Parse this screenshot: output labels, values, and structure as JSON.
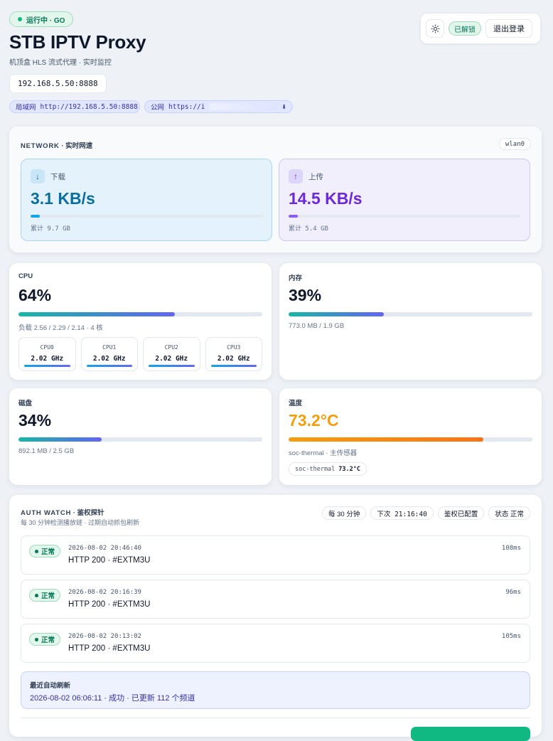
{
  "header": {
    "status": "运行中 · GO",
    "title": "STB IPTV Proxy",
    "subtitle": "机顶盒 HLS 流式代理 · 实时监控",
    "address": "192.168.5.50:8888",
    "lan_tag": "局域网",
    "lan_url": "http://192.168.5.50:8888",
    "wan_tag": "公网",
    "wan_url": "https://i",
    "wan_icon": "⬇"
  },
  "actions": {
    "theme_icon": "sun-icon",
    "unlocked": "已解锁",
    "logout": "退出登录"
  },
  "network": {
    "title": "NETWORK",
    "subtitle": " · 实时网速",
    "interface": "wlan0",
    "download": {
      "arrow": "↓",
      "label": "下载",
      "speed": "3.1 KB/s",
      "total": "累计 9.7 GB",
      "level": 0.04
    },
    "upload": {
      "arrow": "↑",
      "label": "上传",
      "speed": "14.5 KB/s",
      "total": "累计 5.4 GB",
      "level": 0.04
    }
  },
  "cpu": {
    "label": "CPU",
    "value": "64%",
    "percent": 64,
    "load": "负载 2.56 / 2.29 / 2.14 · 4 核",
    "cores": [
      {
        "name": "CPU0",
        "freq": "2.02 GHz"
      },
      {
        "name": "CPU1",
        "freq": "2.02 GHz"
      },
      {
        "name": "CPU2",
        "freq": "2.02 GHz"
      },
      {
        "name": "CPU3",
        "freq": "2.02 GHz"
      }
    ]
  },
  "memory": {
    "label": "内存",
    "value": "39%",
    "percent": 39,
    "detail": "773.0 MB / 1.9 GB"
  },
  "disk": {
    "label": "磁盘",
    "value": "34%",
    "percent": 34,
    "detail": "892.1 MB / 2.5 GB"
  },
  "temperature": {
    "label": "温度",
    "value": "73.2°C",
    "percent": 80,
    "detail": "soc-thermal · 主传感器",
    "sensor_name": "soc-thermal",
    "sensor_value": "73.2°C"
  },
  "auth": {
    "title": "AUTH WATCH",
    "subtitle": " · 鉴权探针",
    "description": "每 30 分钟检测播放链 · 过期自动抓包刷新",
    "chips": [
      "每 30 分钟",
      "下次 21:16:40",
      "鉴权已配置",
      "状态 正常"
    ],
    "checks": [
      {
        "status": "正常",
        "time": "2026-08-02 20:46:40",
        "result": "HTTP 200 · #EXTM3U",
        "latency": "108ms"
      },
      {
        "status": "正常",
        "time": "2026-08-02 20:16:39",
        "result": "HTTP 200 · #EXTM3U",
        "latency": "96ms"
      },
      {
        "status": "正常",
        "time": "2026-08-02 20:13:02",
        "result": "HTTP 200 · #EXTM3U",
        "latency": "105ms"
      }
    ],
    "refresh_title": "最近自动刷新",
    "refresh_detail": "2026-08-02 06:06:11 · 成功 · 已更新 112 个频道"
  }
}
